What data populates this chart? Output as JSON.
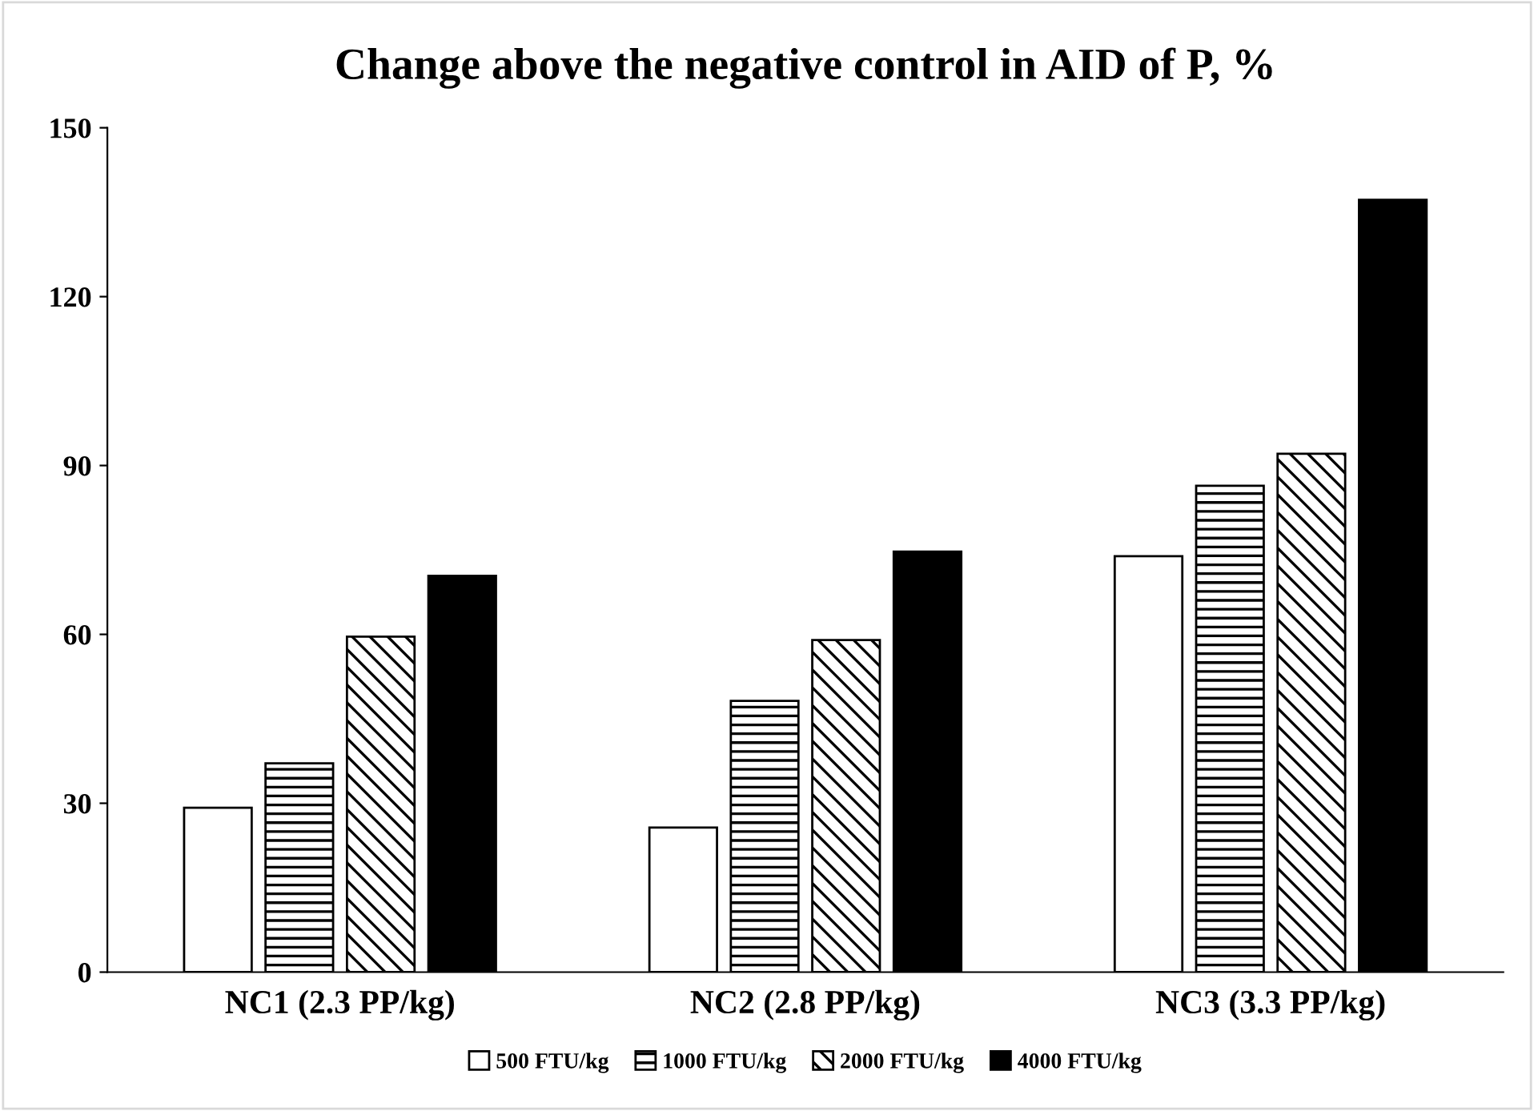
{
  "chart_data": {
    "type": "bar",
    "title": "Change above the negative control in AID of P, %",
    "categories": [
      "NC1 (2.3 PP/kg)",
      "NC2 (2.8 PP/kg)",
      "NC3 (3.3 PP/kg)"
    ],
    "series": [
      {
        "name": "500 FTU/kg",
        "color": "#ffffff",
        "values": [
          29.2,
          25.7,
          73.9
        ]
      },
      {
        "name": "1000 FTU/kg",
        "color": "#000000",
        "values": [
          37.1,
          48.2,
          86.4
        ]
      },
      {
        "name": "2000 FTU/kg",
        "color": "#000000",
        "values": [
          59.6,
          59.0,
          92.1
        ]
      },
      {
        "name": "4000 FTU/kg",
        "color": "#000000",
        "values": [
          70.4,
          74.7,
          137.2
        ]
      }
    ],
    "ylim": [
      0,
      150
    ],
    "yticks": [
      0,
      30,
      60,
      90,
      120,
      150
    ],
    "grid": false,
    "legend": "bottom"
  }
}
